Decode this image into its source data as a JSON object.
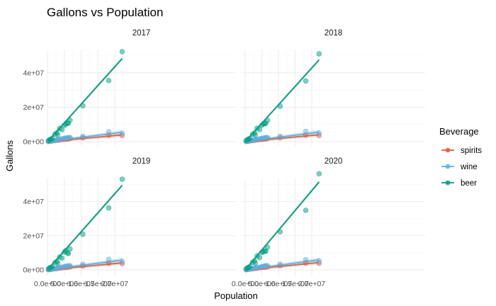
{
  "chart_data": {
    "type": "scatter",
    "title": "Gallons vs Population",
    "xlabel": "Population",
    "ylabel": "Gallons",
    "xlim": [
      0,
      24000000
    ],
    "ylim": [
      -2000000,
      55000000
    ],
    "x_ticks": [
      0,
      5000000,
      10000000,
      15000000,
      20000000
    ],
    "x_tick_labels": [
      "0.0e+00",
      "5.0e+06",
      "1.0e+07",
      "1.5e+07",
      "2.0e+07"
    ],
    "y_ticks": [
      0,
      20000000,
      40000000
    ],
    "y_tick_labels": [
      "0e+00",
      "2e+07",
      "4e+07"
    ],
    "grid": true,
    "legend": {
      "title": "Beverage",
      "placement": "right",
      "entries": [
        {
          "name": "spirits",
          "color": "#e05a41"
        },
        {
          "name": "wine",
          "color": "#56b4e9"
        },
        {
          "name": "beer",
          "color": "#009e80"
        }
      ]
    },
    "population": [
      300000,
      700000,
      1000000,
      1400000,
      2200000,
      2800000,
      3000000,
      3600000,
      4300000,
      5000000,
      5400000,
      5900000,
      6200000,
      6700000,
      10500000,
      18200000,
      22200000
    ],
    "facets": [
      {
        "label": "2017",
        "series": [
          {
            "name": "beer",
            "values": [
              600000,
              1300000,
              1400000,
              1800000,
              4300000,
              5100000,
              4000000,
              7700000,
              7000000,
              9400000,
              10200000,
              10500000,
              10800000,
              12500000,
              20900000,
              35500000,
              52300000
            ],
            "fit": [
              0,
              48300000
            ]
          },
          {
            "name": "wine",
            "values": [
              150000,
              300000,
              400000,
              500000,
              800000,
              1000000,
              1200000,
              1500000,
              1700000,
              1900000,
              2100000,
              2300000,
              2400000,
              2500000,
              3200000,
              5800000,
              4900000
            ],
            "fit": [
              0,
              5500000
            ]
          },
          {
            "name": "spirits",
            "values": [
              100000,
              250000,
              300000,
              400000,
              600000,
              800000,
              900000,
              1000000,
              1200000,
              1400000,
              1500000,
              1600000,
              1700000,
              1800000,
              2300000,
              3700000,
              3600000
            ],
            "fit": [
              0,
              3900000
            ]
          }
        ]
      },
      {
        "label": "2018",
        "series": [
          {
            "name": "beer",
            "values": [
              600000,
              1300000,
              1400000,
              1800000,
              4200000,
              5000000,
              4000000,
              7800000,
              7000000,
              9500000,
              10200000,
              10400000,
              10700000,
              12400000,
              20600000,
              35300000,
              51000000
            ],
            "fit": [
              0,
              47500000
            ]
          },
          {
            "name": "wine",
            "values": [
              150000,
              300000,
              400000,
              500000,
              800000,
              1000000,
              1200000,
              1500000,
              1700000,
              1900000,
              2100000,
              2300000,
              2400000,
              2500000,
              3200000,
              6000000,
              5000000
            ],
            "fit": [
              0,
              5600000
            ]
          },
          {
            "name": "spirits",
            "values": [
              100000,
              250000,
              300000,
              400000,
              600000,
              800000,
              900000,
              1000000,
              1200000,
              1400000,
              1500000,
              1600000,
              1700000,
              1800000,
              2300000,
              3800000,
              3600000
            ],
            "fit": [
              0,
              4000000
            ]
          }
        ]
      },
      {
        "label": "2019",
        "series": [
          {
            "name": "beer",
            "values": [
              600000,
              1300000,
              1400000,
              1800000,
              4200000,
              4900000,
              4000000,
              7500000,
              6900000,
              10400000,
              11200000,
              10000000,
              9600000,
              12300000,
              20900000,
              36300000,
              53100000
            ],
            "fit": [
              0,
              49500000
            ]
          },
          {
            "name": "wine",
            "values": [
              150000,
              300000,
              400000,
              500000,
              800000,
              1000000,
              1200000,
              1500000,
              1700000,
              1900000,
              2100000,
              2300000,
              2400000,
              2500000,
              3300000,
              6200000,
              5000000
            ],
            "fit": [
              0,
              5800000
            ]
          },
          {
            "name": "spirits",
            "values": [
              100000,
              250000,
              300000,
              400000,
              600000,
              800000,
              900000,
              1000000,
              1200000,
              1400000,
              1500000,
              1600000,
              1700000,
              1800000,
              2300000,
              3900000,
              3700000
            ],
            "fit": [
              0,
              4100000
            ]
          }
        ]
      },
      {
        "label": "2020",
        "series": [
          {
            "name": "beer",
            "values": [
              600000,
              1300000,
              1400000,
              1800000,
              4300000,
              5200000,
              4100000,
              8200000,
              7200000,
              10200000,
              10600000,
              10900000,
              11000000,
              13200000,
              22300000,
              34900000,
              56300000
            ],
            "fit": [
              0,
              51500000
            ]
          },
          {
            "name": "wine",
            "values": [
              150000,
              300000,
              400000,
              500000,
              800000,
              1000000,
              1200000,
              1500000,
              1700000,
              1900000,
              2100000,
              2300000,
              2400000,
              2500000,
              3400000,
              6000000,
              5300000
            ],
            "fit": [
              0,
              5900000
            ]
          },
          {
            "name": "spirits",
            "values": [
              100000,
              250000,
              300000,
              400000,
              600000,
              800000,
              900000,
              1000000,
              1200000,
              1400000,
              1500000,
              1600000,
              1700000,
              1800000,
              2400000,
              4000000,
              3900000
            ],
            "fit": [
              0,
              4300000
            ]
          }
        ]
      }
    ]
  }
}
